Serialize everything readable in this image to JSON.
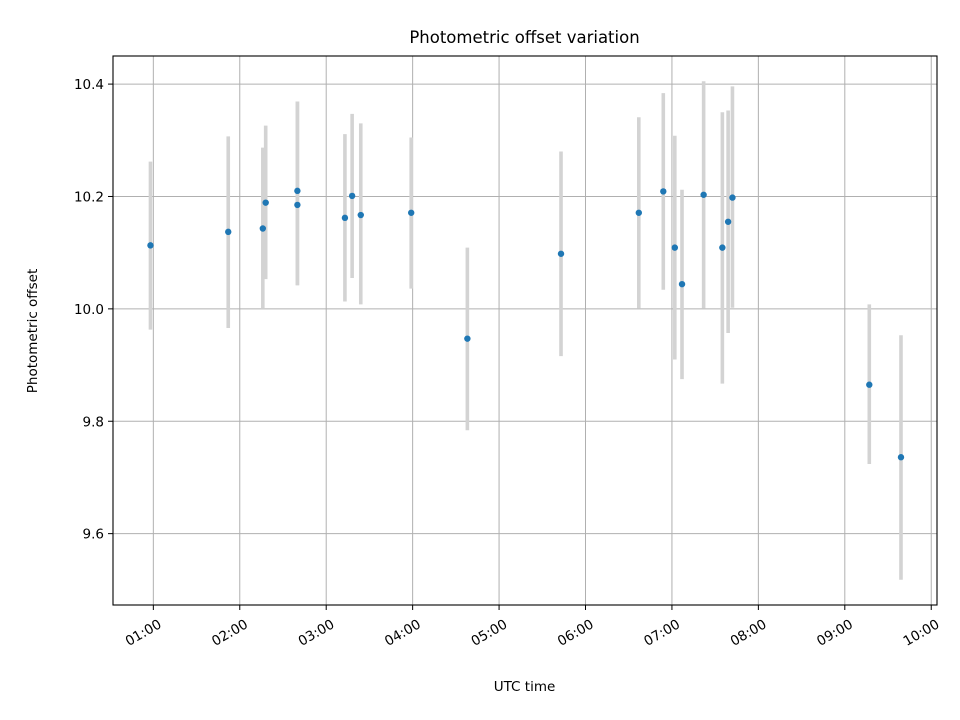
{
  "chart_data": {
    "type": "scatter",
    "title": "Photometric offset variation",
    "xlabel": "UTC time",
    "ylabel": "Photometric offset",
    "x_unit": "UTC time of day (HH:MM)",
    "xlim": [
      "00:32",
      "10:04"
    ],
    "ylim": [
      9.473,
      10.45
    ],
    "xticks": [
      "01:00",
      "02:00",
      "03:00",
      "04:00",
      "05:00",
      "06:00",
      "07:00",
      "08:00",
      "09:00",
      "10:00"
    ],
    "yticks": [
      9.6,
      9.8,
      10.0,
      10.2,
      10.4
    ],
    "ytick_labels": [
      "9.6",
      "9.8",
      "10.0",
      "10.2",
      "10.4"
    ],
    "grid": true,
    "marker_color": "#1f77b4",
    "errorbar_color": "#d3d3d3",
    "points": [
      {
        "x": "00:58",
        "y": 10.113,
        "ylow": 9.963,
        "yhigh": 10.262
      },
      {
        "x": "01:52",
        "y": 10.137,
        "ylow": 9.966,
        "yhigh": 10.307
      },
      {
        "x": "02:16",
        "y": 10.143,
        "ylow": 10.0,
        "yhigh": 10.287
      },
      {
        "x": "02:18",
        "y": 10.189,
        "ylow": 10.053,
        "yhigh": 10.326
      },
      {
        "x": "02:40",
        "y": 10.21,
        "ylow": 10.042,
        "yhigh": 10.369
      },
      {
        "x": "02:40",
        "y": 10.185,
        "ylow": 10.042,
        "yhigh": 10.369
      },
      {
        "x": "03:13",
        "y": 10.162,
        "ylow": 10.013,
        "yhigh": 10.311
      },
      {
        "x": "03:18",
        "y": 10.201,
        "ylow": 10.055,
        "yhigh": 10.347
      },
      {
        "x": "03:24",
        "y": 10.167,
        "ylow": 10.008,
        "yhigh": 10.33
      },
      {
        "x": "03:59",
        "y": 10.171,
        "ylow": 10.036,
        "yhigh": 10.305
      },
      {
        "x": "04:38",
        "y": 9.947,
        "ylow": 9.784,
        "yhigh": 10.109
      },
      {
        "x": "05:43",
        "y": 10.098,
        "ylow": 9.916,
        "yhigh": 10.28
      },
      {
        "x": "06:37",
        "y": 10.171,
        "ylow": 10.001,
        "yhigh": 10.341
      },
      {
        "x": "06:54",
        "y": 10.209,
        "ylow": 10.034,
        "yhigh": 10.384
      },
      {
        "x": "07:02",
        "y": 10.109,
        "ylow": 9.91,
        "yhigh": 10.308
      },
      {
        "x": "07:07",
        "y": 10.044,
        "ylow": 9.875,
        "yhigh": 10.212
      },
      {
        "x": "07:22",
        "y": 10.203,
        "ylow": 10.001,
        "yhigh": 10.405
      },
      {
        "x": "07:35",
        "y": 10.109,
        "ylow": 9.867,
        "yhigh": 10.35
      },
      {
        "x": "07:39",
        "y": 10.155,
        "ylow": 9.957,
        "yhigh": 10.353
      },
      {
        "x": "07:42",
        "y": 10.198,
        "ylow": 10.002,
        "yhigh": 10.396
      },
      {
        "x": "09:17",
        "y": 9.865,
        "ylow": 9.724,
        "yhigh": 10.008
      },
      {
        "x": "09:39",
        "y": 9.736,
        "ylow": 9.518,
        "yhigh": 9.953
      }
    ]
  }
}
